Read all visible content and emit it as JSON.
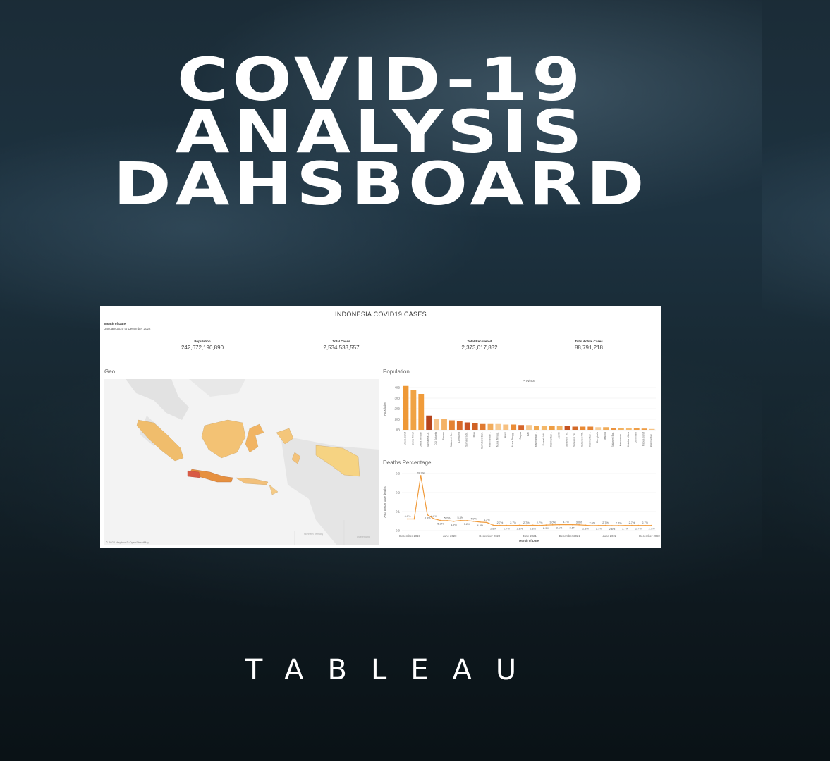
{
  "headline": {
    "line1": "COVID-19",
    "line2": "ANALYSIS",
    "line3": "DAHSBOARD"
  },
  "brand": "TABLEAU",
  "dashboard": {
    "title": "INDONESIA COVID19 CASES",
    "filter_label": "Month of Date",
    "filter_value": "January 2020 to December 2022",
    "kpis": [
      {
        "label": "Population",
        "value": "242,672,190,890"
      },
      {
        "label": "Total Cases",
        "value": "2,534,533,557"
      },
      {
        "label": "Total Recovered",
        "value": "2,373,017,832"
      },
      {
        "label": "Total Active Cases",
        "value": "88,791,218"
      }
    ],
    "geo_title": "Geo",
    "map_credit": "© 2024 Mapbox © OpenStreetMap",
    "map_notes": [
      "Northern Territory",
      "Queensland"
    ]
  },
  "chart_data": [
    {
      "type": "bar",
      "title": "Population",
      "subtitle": "Province",
      "ylabel": "Population",
      "yticks": [
        "40B",
        "30B",
        "20B",
        "10B",
        "0B"
      ],
      "ylim": [
        0,
        40
      ],
      "categories": [
        "Jawa Barat",
        "Jawa Timur",
        "Jawa Tengah",
        "Sumatera U..",
        "DKI Jakarta",
        "Banten",
        "Sulawesi Se..",
        "Lampung",
        "Sumatera S..",
        "Riau",
        "Sumatera Bar..",
        "Kalimantan ..",
        "Nusa Tengg..",
        "Aceh",
        "Nusa Tengg..",
        "Papua",
        "Bali",
        "Kalimantan ..",
        "Daerah Isti..",
        "Kalimantan ..",
        "Jambi",
        "Sulawesi Te..",
        "Sulawesi Te..",
        "Sulawesi Ut..",
        "Kalimantan ..",
        "Bengkulu",
        "Maluku",
        "Sulawesi Ba..",
        "Kepulauan ..",
        "Maluku Utara",
        "Gorontalo",
        "Papua Barat",
        "Kalimantan .."
      ],
      "values": [
        41.5,
        37.5,
        34,
        13.5,
        10.5,
        10,
        9,
        8,
        7,
        6,
        5.5,
        5.5,
        5.5,
        5,
        5,
        4.5,
        4.5,
        4,
        4,
        4,
        3.5,
        3.5,
        3,
        3,
        3,
        2.5,
        2.5,
        2,
        2,
        1.5,
        1.5,
        1.2,
        0.8
      ],
      "colors": [
        "#ee9836",
        "#f0a344",
        "#f09b3a",
        "#b5441c",
        "#f7c48a",
        "#f4b266",
        "#e48233",
        "#d86a2a",
        "#c85426",
        "#d06226",
        "#e07a30",
        "#f2ad5d",
        "#f7ca92",
        "#f6c080",
        "#ea8c37",
        "#d6662b",
        "#f5c88f",
        "#f0a851",
        "#f3b768",
        "#ee9d43",
        "#f3b565",
        "#c4511f",
        "#d36a29",
        "#e98a34",
        "#e68433",
        "#f7cd98",
        "#f0ab58",
        "#eb9340",
        "#f2b160",
        "#f4ba70",
        "#ef9e47",
        "#ee9c45",
        "#f6c283"
      ]
    },
    {
      "type": "line",
      "title": "Deaths Percentage",
      "xlabel": "Month of Date",
      "ylabel": "Avg. percentage deaths",
      "ylim": [
        0,
        0.3
      ],
      "yticks": [
        "0.3",
        "0.2",
        "0.1",
        "0.0"
      ],
      "xticks": [
        "December 2019",
        "June 2020",
        "December 2020",
        "June 2021",
        "December 2021",
        "June 2022",
        "December 2022"
      ],
      "values": [
        0.061,
        0.061,
        0.289,
        0.083,
        0.062,
        0.053,
        0.052,
        0.049,
        0.053,
        0.052,
        0.049,
        0.045,
        0.043,
        0.028,
        0.027,
        0.027,
        0.027,
        0.028,
        0.027,
        0.028,
        0.027,
        0.029,
        0.03,
        0.031,
        0.031,
        0.031,
        0.03,
        0.028,
        0.026,
        0.027,
        0.027,
        0.026,
        0.026,
        0.027,
        0.027,
        0.027,
        0.027,
        0.027
      ],
      "labels": [
        "6.1%",
        "",
        "28.9%",
        "8.3%",
        "6.2%",
        "5.3%",
        "5.2%",
        "4.9%",
        "5.3%",
        "5.2%",
        "4.9%",
        "4.5%",
        "4.3%",
        "2.8%",
        "2.7%",
        "2.7%",
        "2.7%",
        "2.8%",
        "2.7%",
        "2.8%",
        "2.7%",
        "2.9%",
        "3.0%",
        "3.1%",
        "3.1%",
        "3.1%",
        "3.0%",
        "2.8%",
        "2.6%",
        "2.7%",
        "2.7%",
        "2.6%",
        "2.6%",
        "2.7%",
        "2.7%",
        "2.7%",
        "2.7%",
        "2.7%"
      ],
      "line_color": "#f09a3a"
    }
  ]
}
